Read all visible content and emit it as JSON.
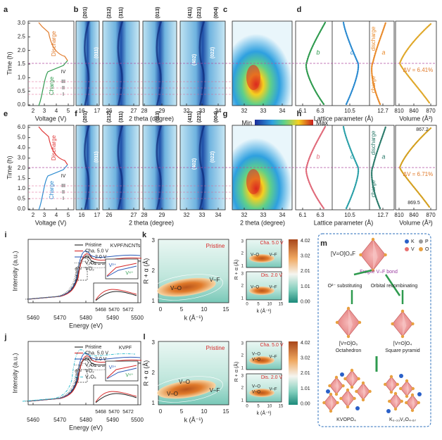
{
  "letters": [
    "a",
    "b",
    "c",
    "d",
    "e",
    "f",
    "g",
    "h",
    "i",
    "j",
    "k",
    "l",
    "m"
  ],
  "rows": [
    {
      "time": {
        "label": "Time (h)",
        "ticks": [
          "3.0",
          "2.5",
          "2.0",
          "1.5",
          "1.0",
          "0.5",
          "0.0"
        ]
      },
      "voltage": {
        "ticks": [
          "2",
          "3",
          "4",
          "5"
        ],
        "label": "Voltage (V)"
      },
      "discharge": "Discharge",
      "charge": "Charge",
      "stages": [
        "IV",
        "III",
        "II",
        "I"
      ],
      "xrd": {
        "panels": [
          [
            "16",
            "17"
          ],
          [
            "26",
            "27"
          ],
          [
            "28",
            "29"
          ],
          [
            "32",
            "33",
            "34"
          ]
        ],
        "peaks": [
          "(201)",
          "(212)",
          "(311)",
          "(013)",
          "(411)",
          "(221)",
          "(004)"
        ],
        "inner": [
          "(011)",
          "(402)",
          "(022)"
        ],
        "label": "2 theta (degree)"
      },
      "contour": {
        "ticks": [
          "32",
          "33",
          "34"
        ],
        "colorbar": [
          "Min",
          "Max"
        ]
      },
      "lattice": {
        "ticks": [
          "6.1",
          "6.3",
          "10.5",
          "12.7"
        ],
        "label": "Lattice parameter (Å)",
        "params": [
          "b",
          "c",
          "a"
        ],
        "discharge": "discharge",
        "charge": "charge"
      },
      "volume": {
        "ticks": [
          "810",
          "840",
          "870"
        ],
        "label": "Volume (Å³)",
        "dv": "ΔV = 6.41%"
      }
    },
    {
      "time": {
        "label": "Time (h)",
        "ticks": [
          "6.0",
          "5.0",
          "4.0",
          "3.0",
          "2.0",
          "1.5",
          "1.0",
          "0.5",
          "0.0"
        ]
      },
      "voltage": {
        "ticks": [
          "2",
          "3",
          "4",
          "5"
        ],
        "label": "Voltage (V)"
      },
      "discharge": "Discharge",
      "charge": "Charge",
      "stages": [
        "IV",
        "III",
        "II",
        "I"
      ],
      "xrd": {
        "panels": [
          [
            "16",
            "17"
          ],
          [
            "26",
            "27"
          ],
          [
            "28",
            "29"
          ],
          [
            "32",
            "33",
            "34"
          ]
        ],
        "peaks": [
          "(201)",
          "(212)",
          "(311)",
          "(013)",
          "(411)",
          "(221)",
          "(004)"
        ],
        "inner": [
          "(011)",
          "(402)",
          "(022)"
        ],
        "label": "2 theta (degree)"
      },
      "contour": {
        "ticks": [
          "32",
          "33",
          "34"
        ],
        "label": "2 theta (degree)"
      },
      "lattice": {
        "ticks": [
          "6.1",
          "6.3",
          "10.5",
          "12.7"
        ],
        "label": "Lattice parameter (Å)",
        "params": [
          "b",
          "c",
          "a"
        ],
        "discharge": "discharge",
        "charge": "charge"
      },
      "volume": {
        "ticks": [
          "810",
          "840",
          "870"
        ],
        "label": "Volume (Å³)",
        "dv": "ΔV = 6.71%",
        "marks": [
          "867.2",
          "869.5"
        ]
      }
    }
  ],
  "xas": [
    {
      "title": "KVPF/NCNTs",
      "legend": [
        "Pristine",
        "Cha. 5.0 V",
        "Dis. 2.0 V",
        "V₂O₃",
        "VO₂"
      ],
      "ylabel": "Intensity (a.u.)",
      "ticks": [
        "5460",
        "5470",
        "5480",
        "5490",
        "5500"
      ],
      "xlabel": "Energy (eV)",
      "inset_ticks": [
        "5468",
        "5470",
        "5472"
      ],
      "ions": [
        "V³⁺",
        "V⁴⁺"
      ]
    },
    {
      "title": "KVPF",
      "legend": [
        "Pristine",
        "Cha. 5.0 V",
        "Dis. 2.0 V",
        "V₂O₃",
        "VO₂",
        "V₂O₅"
      ],
      "ylabel": "Intensity (a.u.)",
      "ticks": [
        "5460",
        "5470",
        "5480",
        "5490",
        "5500"
      ],
      "xlabel": "Energy (eV)",
      "inset_ticks": [
        "5468",
        "5470",
        "5472"
      ],
      "ions": [
        "V³⁺",
        "V⁴⁺"
      ]
    }
  ],
  "exafs": [
    {
      "state": "Pristine",
      "ylabel": "R + α (Å)",
      "yticks": [
        "1",
        "2",
        "3"
      ],
      "xticks": [
        "0",
        "5",
        "10",
        "15"
      ],
      "xlabel": "k (Å⁻¹)",
      "bonds": [
        "V–O",
        "V–F"
      ],
      "small": [
        {
          "state": "Cha. 5.0 V",
          "bonds": [
            "V–O",
            "V–F"
          ]
        },
        {
          "state": "Dis. 2.0 V",
          "bonds": [
            "V–O",
            "V–F"
          ]
        }
      ],
      "colorbar": [
        "4.02",
        "3.02",
        "2.01",
        "1.01",
        "0.00"
      ]
    },
    {
      "state": "Pristine",
      "ylabel": "R + α (Å)",
      "yticks": [
        "1",
        "2",
        "3"
      ],
      "xticks": [
        "0",
        "5",
        "10",
        "15"
      ],
      "xlabel": "k (Å⁻¹)",
      "bonds": [
        "V–O",
        "V–O",
        "V–F"
      ],
      "small": [
        {
          "state": "Cha. 5.0 V",
          "bonds": [
            "V–O",
            "V–O",
            "V–F"
          ]
        },
        {
          "state": "Dis. 2.0 V",
          "bonds": [
            "V–O",
            "V–O",
            "V–F"
          ]
        }
      ],
      "colorbar": [
        "4.02",
        "3.02",
        "2.01",
        "1.01",
        "0.00"
      ]
    }
  ],
  "m": {
    "top": "[V=O]O₄F",
    "legend": [
      "K",
      "P",
      "V",
      "O"
    ],
    "bond": "Fragile V–F bond",
    "left_arrow": "O²⁻ substituting",
    "right_arrow": "Orbital recombinating",
    "oct": [
      "[V=O]O₅",
      "Octahedron"
    ],
    "pyr": [
      "[V=O]O₄",
      "Square pyramid"
    ],
    "products": [
      "KVOPO₄",
      "K₀.₃₃V₂O₄.₆₇"
    ]
  }
}
